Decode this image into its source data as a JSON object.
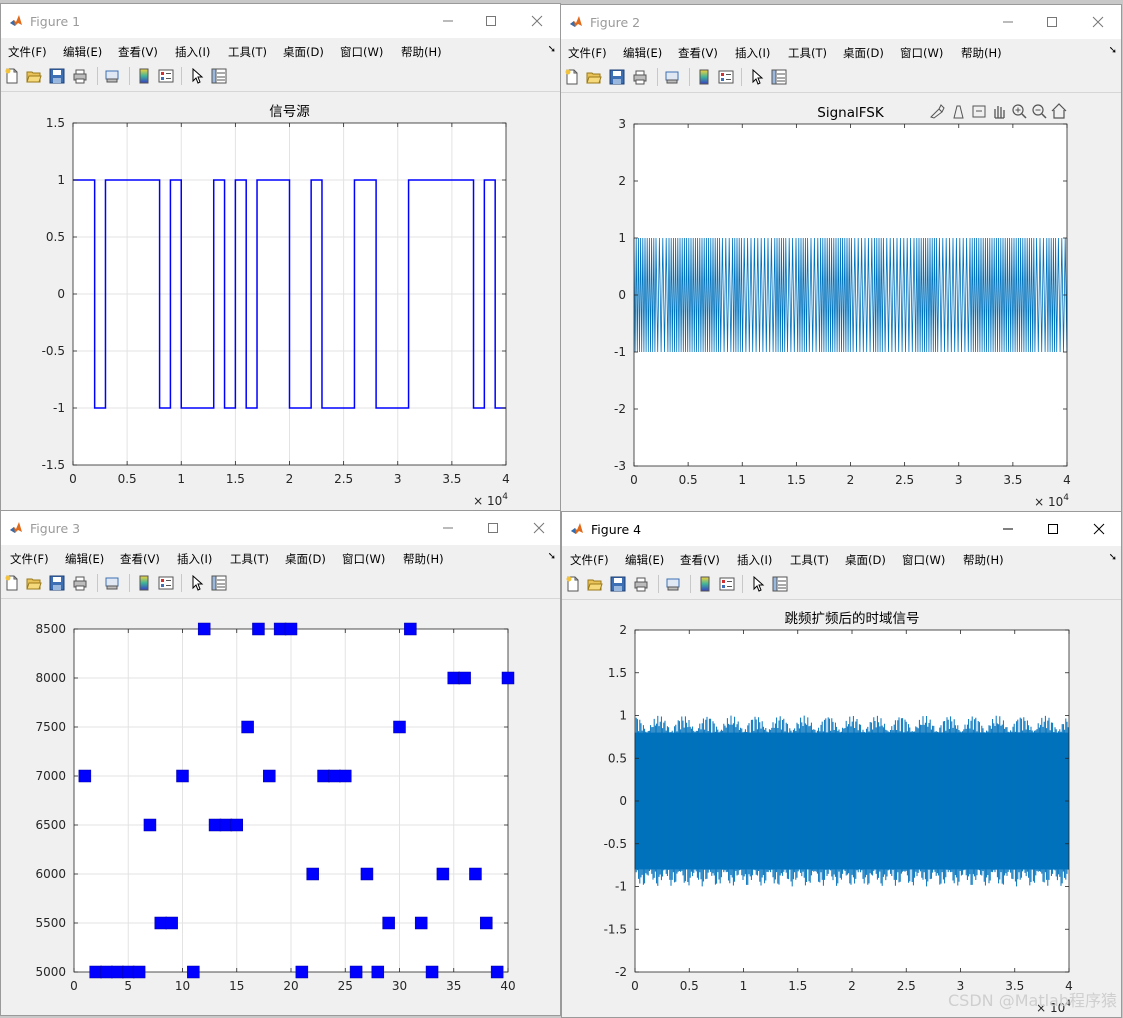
{
  "menu": [
    "文件(F)",
    "编辑(E)",
    "查看(V)",
    "插入(I)",
    "工具(T)",
    "桌面(D)",
    "窗口(W)",
    "帮助(H)"
  ],
  "windows": [
    {
      "id": "fig1",
      "title": "Figure 1",
      "active": false
    },
    {
      "id": "fig2",
      "title": "Figure 2",
      "active": false
    },
    {
      "id": "fig3",
      "title": "Figure 3",
      "active": false
    },
    {
      "id": "fig4",
      "title": "Figure 4",
      "active": true
    }
  ],
  "toolbar_icons": [
    "new-figure-icon",
    "open-file-icon",
    "save-icon",
    "print-icon",
    "print-preview-icon",
    "colorbar-icon",
    "legend-icon",
    "pointer-icon",
    "property-inspector-icon"
  ],
  "axes_toolbar_icons": [
    "brush-icon",
    "data-tips-icon",
    "rotate-icon",
    "pan-icon",
    "zoom-in-icon",
    "zoom-out-icon",
    "home-icon"
  ],
  "watermark": "CSDN @Matlab程序猿",
  "chart_data": [
    {
      "id": "fig1",
      "type": "line",
      "title": "信号源",
      "xlim": [
        0,
        40000
      ],
      "ylim": [
        -1.5,
        1.5
      ],
      "xticks": [
        "0",
        "0.5",
        "1",
        "1.5",
        "2",
        "2.5",
        "3",
        "3.5",
        "4"
      ],
      "yticks": [
        "-1.5",
        "-1",
        "-0.5",
        "0",
        "0.5",
        "1",
        "1.5"
      ],
      "x_exponent": "× 10^4",
      "grid": true,
      "color": "#0000ff",
      "bits": [
        1,
        1,
        -1,
        1,
        1,
        1,
        1,
        1,
        -1,
        1,
        -1,
        -1,
        -1,
        1,
        -1,
        1,
        -1,
        1,
        1,
        1,
        -1,
        -1,
        1,
        -1,
        -1,
        -1,
        1,
        1,
        -1,
        -1,
        -1,
        1,
        1,
        1,
        1,
        1,
        1,
        -1,
        1,
        -1
      ]
    },
    {
      "id": "fig2",
      "type": "line",
      "title": "SignalFSK",
      "xlim": [
        0,
        40000
      ],
      "ylim": [
        -3,
        3
      ],
      "xticks": [
        "0",
        "0.5",
        "1",
        "1.5",
        "2",
        "2.5",
        "3",
        "3.5",
        "4"
      ],
      "yticks": [
        "-3",
        "-2",
        "-1",
        "0",
        "1",
        "2",
        "3"
      ],
      "x_exponent": "× 10^4",
      "grid": false,
      "color": "#0072bd",
      "amplitude": 1
    },
    {
      "id": "fig3",
      "type": "scatter",
      "title": "",
      "xlim": [
        0,
        40
      ],
      "ylim": [
        5000,
        8500
      ],
      "xticks": [
        "0",
        "5",
        "10",
        "15",
        "20",
        "25",
        "30",
        "35",
        "40"
      ],
      "yticks": [
        "5000",
        "5500",
        "6000",
        "6500",
        "7000",
        "7500",
        "8000",
        "8500"
      ],
      "grid": true,
      "color": "#0000ff",
      "marker": "square",
      "x": [
        1,
        2,
        3,
        4,
        5,
        6,
        7,
        8,
        9,
        10,
        11,
        12,
        13,
        14,
        15,
        16,
        17,
        18,
        19,
        20,
        21,
        22,
        23,
        24,
        25,
        26,
        27,
        28,
        29,
        30,
        31,
        32,
        33,
        34,
        35,
        36,
        37,
        38,
        39,
        40
      ],
      "y": [
        7000,
        5000,
        5000,
        5000,
        5000,
        5000,
        6500,
        5500,
        5500,
        7000,
        5000,
        8500,
        6500,
        6500,
        6500,
        7500,
        8500,
        7000,
        8500,
        8500,
        5000,
        6000,
        7000,
        7000,
        7000,
        5000,
        6000,
        5000,
        5500,
        7500,
        8500,
        5500,
        5000,
        6000,
        8000,
        8000,
        6000,
        5500,
        5000,
        8000
      ]
    },
    {
      "id": "fig4",
      "type": "area",
      "title": "跳频扩频后的时域信号",
      "xlim": [
        0,
        40000
      ],
      "ylim": [
        -2,
        2
      ],
      "xticks": [
        "0",
        "0.5",
        "1",
        "1.5",
        "2",
        "2.5",
        "3",
        "3.5",
        "4"
      ],
      "yticks": [
        "-2",
        "-1.5",
        "-1",
        "-0.5",
        "0",
        "0.5",
        "1",
        "1.5",
        "2"
      ],
      "x_exponent": "× 10^4",
      "grid": false,
      "color": "#0072bd",
      "amplitude": 1
    }
  ]
}
